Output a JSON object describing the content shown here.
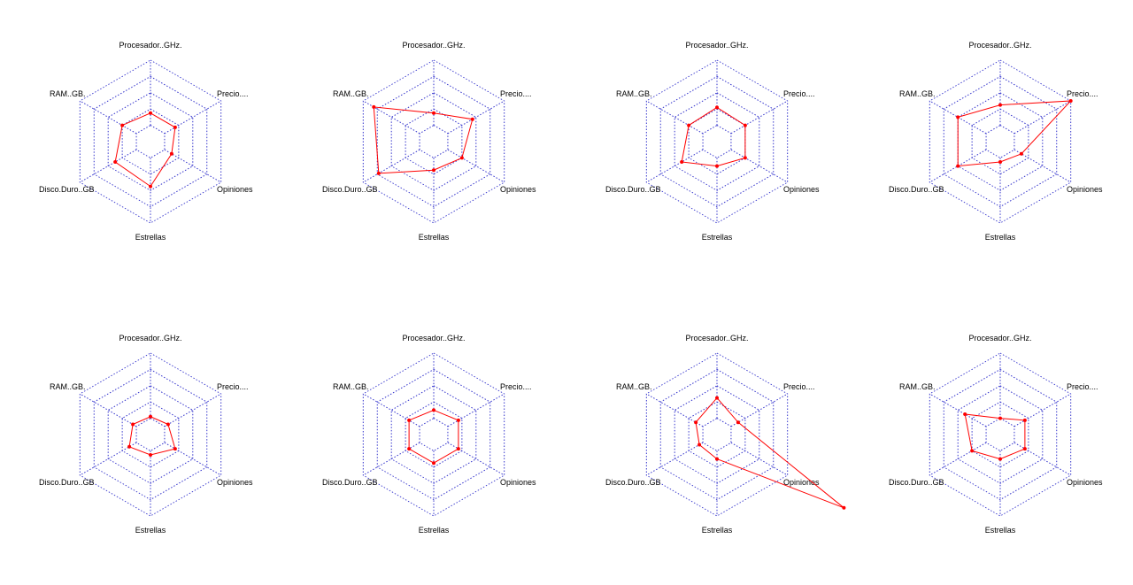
{
  "chart_data": {
    "type": "radar",
    "axes": [
      "Procesador..GHz.",
      "Precio....",
      "Opiniones",
      "Estrellas",
      "Disco.Duro..GB",
      "RAM..GB."
    ],
    "ring_levels": [
      0.2,
      0.4,
      0.6,
      0.8,
      1.0
    ],
    "range": [
      0,
      1
    ],
    "grid": true,
    "grid_style": "dotted",
    "colors": {
      "grid": "#3333cc",
      "series": "#ff0000",
      "text": "#000000"
    },
    "charts": [
      {
        "values": [
          0.35,
          0.35,
          0.3,
          0.55,
          0.5,
          0.4
        ]
      },
      {
        "values": [
          0.35,
          0.55,
          0.4,
          0.35,
          0.78,
          0.85
        ]
      },
      {
        "values": [
          0.42,
          0.4,
          0.4,
          0.3,
          0.5,
          0.4
        ]
      },
      {
        "values": [
          0.45,
          1.0,
          0.3,
          0.25,
          0.6,
          0.6
        ]
      },
      {
        "values": [
          0.22,
          0.25,
          0.35,
          0.25,
          0.3,
          0.25
        ]
      },
      {
        "values": [
          0.3,
          0.35,
          0.35,
          0.35,
          0.35,
          0.35
        ]
      },
      {
        "values": [
          0.45,
          0.3,
          1.8,
          0.3,
          0.25,
          0.3
        ]
      },
      {
        "values": [
          0.2,
          0.35,
          0.35,
          0.3,
          0.4,
          0.5
        ]
      }
    ]
  }
}
